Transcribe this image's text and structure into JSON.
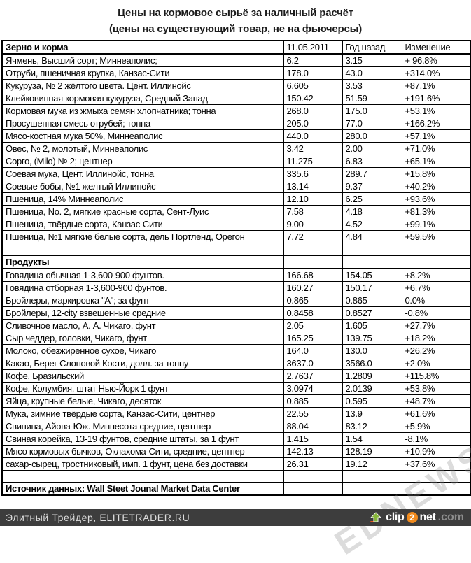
{
  "title": {
    "line1": "Цены на кормовое сырьё за наличный расчёт",
    "line2": "(цены на существующий товар, не на фьючерсы)"
  },
  "chart_data": {
    "type": "table",
    "title": "Цены на кормовое сырьё за наличный расчёт",
    "subtitle": "(цены на существующий товар, не на фьючерсы)",
    "value_columns": [
      "11.05.2011",
      "Год назад",
      "Изменение"
    ],
    "sections": [
      {
        "name": "Зерно и корма",
        "rows": [
          [
            "Ячмень, Высший сорт; Миннеаполис;",
            "6.2",
            "3.15",
            "+ 96.8%"
          ],
          [
            "Отруби, пшеничная крупка, Канзас-Сити",
            "178.0",
            "43.0",
            "+314.0%"
          ],
          [
            "Кукуруза, № 2 жёлтого цвета. Цент. Иллинойс",
            "6.605",
            "3.53",
            "+87.1%"
          ],
          [
            "Клейковинная кормовая кукуруза, Средний Запад",
            "150.42",
            "51.59",
            "+191.6%"
          ],
          [
            "Кормовая мука из жмыха семян хлопчатника; тонна",
            "268.0",
            "175.0",
            "+53.1%"
          ],
          [
            "Просушенная смесь отрубей; тонна",
            "205.0",
            "77.0",
            "+166.2%"
          ],
          [
            "Мясо-костная мука 50%, Миннеаполис",
            "440.0",
            "280.0",
            "+57.1%"
          ],
          [
            "Овес, № 2, молотый, Миннеаполис",
            "3.42",
            "2.00",
            "+71.0%"
          ],
          [
            "Сорго, (Milo) № 2; центнер",
            "11.275",
            "6.83",
            "+65.1%"
          ],
          [
            "Соевая мука, Цент. Иллинойс, тонна",
            "335.6",
            "289.7",
            "+15.8%"
          ],
          [
            "Соевые бобы, №1 желтый Иллинойс",
            "13.14",
            "9.37",
            "+40.2%"
          ],
          [
            "Пшеница, 14% Миннеаполис",
            "12.10",
            "6.25",
            "+93.6%"
          ],
          [
            "Пшеница, No. 2, мягкие красные сорта, Сент-Луис",
            "7.58",
            "4.18",
            "+81.3%"
          ],
          [
            "Пшеница, твёрдые сорта, Канзас-Сити",
            "9.00",
            "4.52",
            "+99.1%"
          ],
          [
            "Пшеница, №1 мягкие белые сорта, дель Портленд, Орегон",
            "7.72",
            "4.84",
            "+59.5%"
          ]
        ]
      },
      {
        "name": "Продукты",
        "rows": [
          [
            "Говядина обычная 1-3,600-900  фунтов.",
            "166.68",
            "154.05",
            "+8.2%"
          ],
          [
            "Говядина отборная 1-3,600-900  фунтов.",
            "160.27",
            "150.17",
            "+6.7%"
          ],
          [
            "Бройлеры, маркировка \"A\"; за фунт",
            "0.865",
            "0.865",
            "0.0%"
          ],
          [
            "Бройлеры, 12-city взвешенные средние",
            "0.8458",
            "0.8527",
            "-0.8%"
          ],
          [
            "Сливочное масло, А. А. Чикаго, фунт",
            "2.05",
            "1.605",
            "+27.7%"
          ],
          [
            "Сыр чеддер, головки, Чикаго, фунт",
            "165.25",
            "139.75",
            "+18.2%"
          ],
          [
            "Молоко, обезжиренное сухое, Чикаго",
            "164.0",
            "130.0",
            "+26.2%"
          ],
          [
            "Какао, Берег Слоновой Кости, долл. за тонну",
            "3637.0",
            "3566.0",
            "+2.0%"
          ],
          [
            "Кофе, Бразильский",
            "2.7637",
            "1.2809",
            "+115.8%"
          ],
          [
            "Кофе, Колумбия, штат Нью-Йорк 1 фунт",
            "3.0974",
            "2.0139",
            "+53.8%"
          ],
          [
            "Яйца, крупные белые, Чикаго, десяток",
            "0.885",
            "0.595",
            "+48.7%"
          ],
          [
            "Мука, зимние твёрдые сорта, Канзас-Сити, центнер",
            "22.55",
            "13.9",
            "+61.6%"
          ],
          [
            "Свинина, Айова-Юж. Миннесота средние, центнер",
            "88.04",
            "83.12",
            "+5.9%"
          ],
          [
            "Свиная корейка, 13-19 фунтов, средние штаты, за 1 фунт",
            "1.415",
            "1.54",
            "-8.1%"
          ],
          [
            "Мясо кормовых бычков, Оклахома-Сити, средние, центнер",
            "142.13",
            "128.19",
            "+10.9%"
          ],
          [
            "сахар-сырец, тростниковый, имп. 1 фунт, цена без доставки",
            "26.31",
            "19.12",
            "+37.6%"
          ]
        ]
      }
    ],
    "source_note": "Источник данных: Wall Steet Jounal Market Data Center"
  },
  "watermark": "EDNEWS",
  "bottom_bar": {
    "site_label": "Элитный Трейдер, ELITETRADER.RU",
    "logo": {
      "prefix": "clip",
      "middle": "2",
      "suffix": "net",
      "tld": ".com"
    }
  }
}
